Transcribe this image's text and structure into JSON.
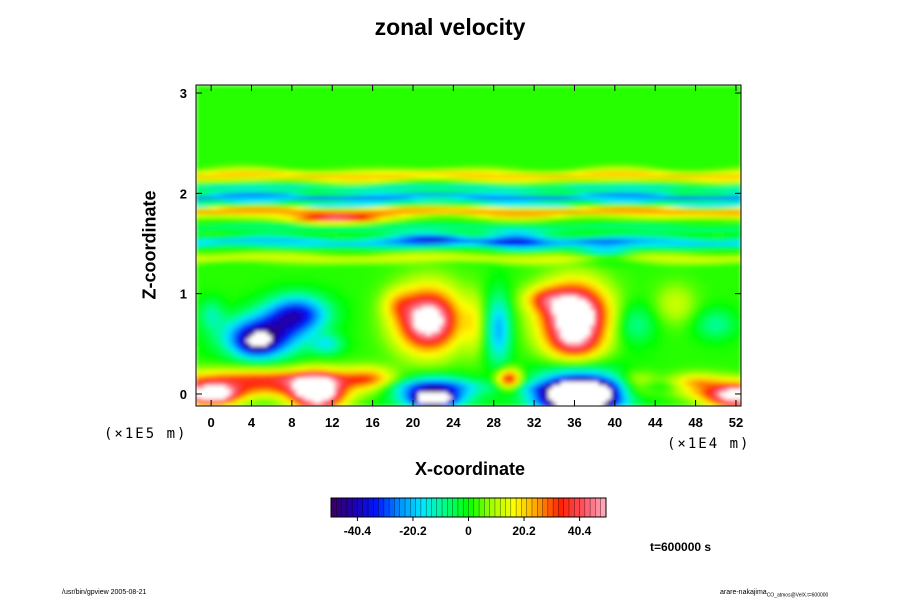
{
  "chart_data": {
    "type": "heatmap",
    "title": "zonal velocity",
    "xlabel": "X-coordinate",
    "ylabel": "Z-coordinate",
    "x_unit": "(×1E4 m)",
    "y_unit": "(×1E5 m)",
    "xlim": [
      -1.5,
      52.5
    ],
    "ylim": [
      -0.12,
      3.08
    ],
    "x_ticks": [
      "0",
      "4",
      "8",
      "12",
      "16",
      "20",
      "24",
      "28",
      "32",
      "36",
      "40",
      "44",
      "48",
      "52"
    ],
    "y_ticks": [
      "0",
      "1",
      "2",
      "3"
    ],
    "colorbar": {
      "range": [
        -50,
        50
      ],
      "ticks": [
        "-40.4",
        "-20.2",
        "0",
        "20.2",
        "40.4"
      ],
      "colors": [
        "#3a0060",
        "#1e00b0",
        "#0018ff",
        "#0090ff",
        "#00e8ff",
        "#00ff80",
        "#00ff00",
        "#a0ff00",
        "#ffff00",
        "#ffa000",
        "#ff2000",
        "#ff5060",
        "#ffb0c0"
      ]
    },
    "background_value": 2,
    "features": [
      {
        "kind": "band",
        "z": 2.18,
        "thickness": 0.05,
        "value": 20
      },
      {
        "kind": "band",
        "z": 2.06,
        "thickness": 0.03,
        "value": -16
      },
      {
        "kind": "band",
        "z": 1.97,
        "thickness": 0.035,
        "value": -30
      },
      {
        "kind": "band",
        "z": 1.9,
        "thickness": 0.02,
        "value": -20
      },
      {
        "kind": "band",
        "z": 1.82,
        "thickness": 0.05,
        "value": 24
      },
      {
        "kind": "band",
        "z": 1.66,
        "thickness": 0.04,
        "value": -10
      },
      {
        "kind": "band",
        "z": 1.52,
        "thickness": 0.05,
        "value": -22
      },
      {
        "kind": "band",
        "z": 1.36,
        "thickness": 0.04,
        "value": 12
      },
      {
        "kind": "band",
        "z": 0.08,
        "thickness": 0.05,
        "value": -6
      },
      {
        "kind": "blob",
        "x": 12,
        "z": 1.75,
        "rx": 4,
        "rz": 0.04,
        "value": 40
      },
      {
        "kind": "blob",
        "x": 22,
        "z": 1.55,
        "rx": 3.5,
        "rz": 0.08,
        "value": -20
      },
      {
        "kind": "blob",
        "x": 30,
        "z": 1.55,
        "rx": 3,
        "rz": 0.08,
        "value": -22
      },
      {
        "kind": "blob",
        "x": 39,
        "z": 1.45,
        "rx": 3,
        "rz": 0.1,
        "value": -20
      },
      {
        "kind": "blob",
        "x": 5,
        "z": 0.58,
        "rx": 3.6,
        "rz": 0.2,
        "value": -44
      },
      {
        "kind": "blob",
        "x": 8.5,
        "z": 0.8,
        "rx": 3,
        "rz": 0.18,
        "value": -38
      },
      {
        "kind": "blob",
        "x": 4.5,
        "z": 0.5,
        "rx": 1.8,
        "rz": 0.12,
        "value": -20
      },
      {
        "kind": "blob",
        "x": 11.5,
        "z": 0.5,
        "rx": 1.6,
        "rz": 0.1,
        "value": -16
      },
      {
        "kind": "blob",
        "x": 0,
        "z": 0.8,
        "rx": 1.2,
        "rz": 0.15,
        "value": -12
      },
      {
        "kind": "blob",
        "x": 21.5,
        "z": 0.75,
        "rx": 3.2,
        "rz": 0.32,
        "value": 44
      },
      {
        "kind": "blob",
        "x": 21.5,
        "z": 0.72,
        "rx": 2.3,
        "rz": 0.22,
        "value": 16
      },
      {
        "kind": "blob",
        "x": 18.5,
        "z": 0.9,
        "rx": 1.5,
        "rz": 0.14,
        "value": 12
      },
      {
        "kind": "blob",
        "x": 28.5,
        "z": 0.65,
        "rx": 1.2,
        "rz": 0.35,
        "value": -24
      },
      {
        "kind": "blob",
        "x": 26,
        "z": 0.7,
        "rx": 1.0,
        "rz": 0.3,
        "value": 10
      },
      {
        "kind": "blob",
        "x": 36,
        "z": 0.78,
        "rx": 3.3,
        "rz": 0.32,
        "value": 52
      },
      {
        "kind": "blob",
        "x": 36,
        "z": 0.78,
        "rx": 2.5,
        "rz": 0.25,
        "value": 16
      },
      {
        "kind": "blob",
        "x": 36,
        "z": 0.5,
        "rx": 2.5,
        "rz": 0.15,
        "value": 18
      },
      {
        "kind": "blob",
        "x": 33,
        "z": 0.95,
        "rx": 2.0,
        "rz": 0.12,
        "value": 20
      },
      {
        "kind": "blob",
        "x": 42,
        "z": 0.7,
        "rx": 2,
        "rz": 0.2,
        "value": -12
      },
      {
        "kind": "blob",
        "x": 46,
        "z": 0.9,
        "rx": 2,
        "rz": 0.2,
        "value": 10
      },
      {
        "kind": "blob",
        "x": 50,
        "z": 0.7,
        "rx": 2,
        "rz": 0.15,
        "value": -12
      },
      {
        "kind": "blob",
        "x": 5,
        "z": 0.12,
        "rx": 9,
        "rz": 0.12,
        "value": 38
      },
      {
        "kind": "blob",
        "x": 10.5,
        "z": 0.02,
        "rx": 2.5,
        "rz": 0.17,
        "value": 62
      },
      {
        "kind": "blob",
        "x": 0,
        "z": 0.0,
        "rx": 2.6,
        "rz": 0.1,
        "value": 60
      },
      {
        "kind": "blob",
        "x": 15.5,
        "z": 0.15,
        "rx": 2.5,
        "rz": 0.12,
        "value": 22
      },
      {
        "kind": "blob",
        "x": 22,
        "z": 0.02,
        "rx": 3.6,
        "rz": 0.14,
        "value": -46
      },
      {
        "kind": "blob",
        "x": 22,
        "z": -0.05,
        "rx": 1.6,
        "rz": 0.06,
        "value": -62
      },
      {
        "kind": "blob",
        "x": 29.5,
        "z": 0.15,
        "rx": 1.2,
        "rz": 0.1,
        "value": 38
      },
      {
        "kind": "blob",
        "x": 36.5,
        "z": 0.02,
        "rx": 4.5,
        "rz": 0.22,
        "value": -44
      },
      {
        "kind": "blob",
        "x": 36.5,
        "z": -0.02,
        "rx": 3.3,
        "rz": 0.14,
        "value": -64
      },
      {
        "kind": "blob",
        "x": 42,
        "z": 0.1,
        "rx": 2,
        "rz": 0.12,
        "value": 18
      },
      {
        "kind": "blob",
        "x": 52,
        "z": 0.0,
        "rx": 3,
        "rz": 0.12,
        "value": 60
      },
      {
        "kind": "blob",
        "x": 48,
        "z": 0.1,
        "rx": 2.5,
        "rz": 0.1,
        "value": 22
      }
    ]
  },
  "time_label": "t=600000 s",
  "footer": {
    "left": "/usr/bin/gpview 2005-08-21",
    "right_main": "arare-nakajima",
    "right_sub": "CO_atmos@VelX.t=600000"
  }
}
